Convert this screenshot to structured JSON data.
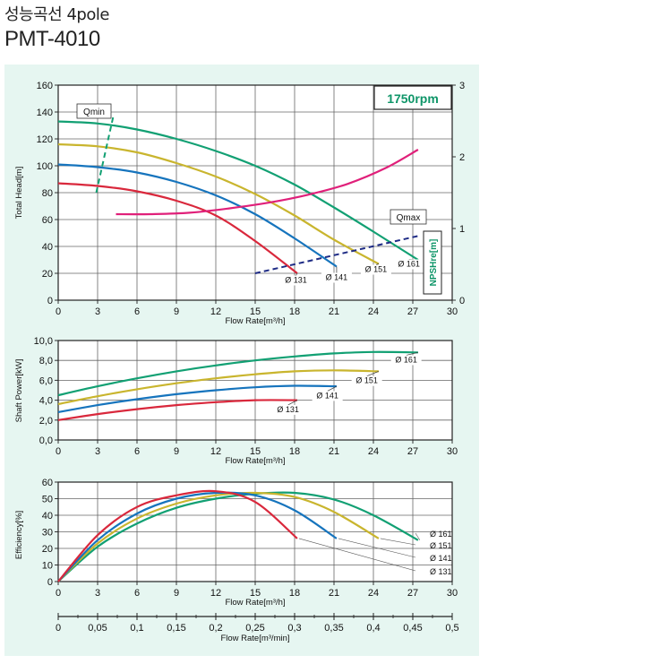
{
  "header": {
    "title_ko": "성능곡선 4pole",
    "model": "PMT-4010"
  },
  "colors": {
    "d161": "#12a073",
    "d151": "#c9b52e",
    "d141": "#1674bd",
    "d131": "#d9283c",
    "npsh": "#e0207a",
    "limits": "#1e2b85",
    "rpm_text": "#0e9568",
    "panel": "#e6f6f1"
  },
  "chart_data": [
    {
      "type": "line",
      "id": "head",
      "xlabel": "Flow Rate[m³/h]",
      "ylabel": "Total Head[m]",
      "y2label": "NPSHre[m]",
      "xlim": [
        0,
        30
      ],
      "ylim": [
        0,
        160
      ],
      "y2lim": [
        0,
        3
      ],
      "xticks": [
        "0",
        "3",
        "6",
        "9",
        "12",
        "15",
        "18",
        "21",
        "24",
        "27",
        "30"
      ],
      "yticks": [
        "0",
        "20",
        "40",
        "60",
        "80",
        "100",
        "120",
        "140",
        "160"
      ],
      "y2ticks": [
        "0",
        "1",
        "2",
        "3"
      ],
      "grid": true,
      "badge": "1750rpm",
      "series": [
        {
          "name": "Ø 161",
          "color_key": "d161",
          "x": [
            0,
            3,
            6,
            9,
            12,
            15,
            18,
            21,
            24,
            27.4
          ],
          "y": [
            133,
            131.5,
            127,
            120,
            111,
            100,
            86,
            69,
            51,
            30
          ]
        },
        {
          "name": "Ø 151",
          "color_key": "d151",
          "x": [
            0,
            3,
            6,
            9,
            12,
            15,
            18,
            21,
            24.4
          ],
          "y": [
            116,
            114.5,
            110,
            102,
            92,
            79,
            63,
            45,
            27
          ]
        },
        {
          "name": "Ø 141",
          "color_key": "d141",
          "x": [
            0,
            3,
            6,
            9,
            12,
            15,
            18,
            21.2
          ],
          "y": [
            101,
            99,
            95,
            88,
            78,
            64,
            46,
            25
          ]
        },
        {
          "name": "Ø 131",
          "color_key": "d131",
          "x": [
            0,
            3,
            6,
            9,
            12,
            15,
            18.2
          ],
          "y": [
            87,
            85,
            81,
            74,
            63,
            44,
            20
          ]
        }
      ],
      "npsh": {
        "name": "NPSHre[m]",
        "x": [
          4.4,
          7,
          10,
          13,
          16,
          19,
          22,
          25,
          27.4
        ],
        "y": [
          1.2,
          1.2,
          1.22,
          1.28,
          1.36,
          1.47,
          1.62,
          1.85,
          2.1
        ]
      },
      "qmin": {
        "label": "Qmin",
        "x": [
          2.9,
          4.2
        ],
        "y": [
          80,
          137
        ]
      },
      "qmax": {
        "label": "Qmax",
        "x": [
          15,
          27.5
        ],
        "y": [
          20,
          48
        ]
      },
      "curve_labels": [
        {
          "text": "Ø 131",
          "x": 18.1,
          "y": 13
        },
        {
          "text": "Ø 141",
          "x": 21.2,
          "y": 15
        },
        {
          "text": "Ø 151",
          "x": 24.2,
          "y": 21
        },
        {
          "text": "Ø 161",
          "x": 26.7,
          "y": 25
        }
      ]
    },
    {
      "type": "line",
      "id": "power",
      "xlabel": "Flow Rate[m³/h]",
      "ylabel": "Shaft Power[kW]",
      "xlim": [
        0,
        30
      ],
      "ylim": [
        0,
        10
      ],
      "xticks": [
        "0",
        "3",
        "6",
        "9",
        "12",
        "15",
        "18",
        "21",
        "24",
        "27",
        "30"
      ],
      "yticks": [
        "0,0",
        "2,0",
        "4,0",
        "6,0",
        "8,0",
        "10,0"
      ],
      "grid": true,
      "series": [
        {
          "name": "Ø 161",
          "color_key": "d161",
          "x": [
            0,
            3,
            6,
            9,
            12,
            15,
            18,
            21,
            24,
            27.4
          ],
          "y": [
            4.5,
            5.4,
            6.2,
            6.9,
            7.5,
            8.0,
            8.4,
            8.7,
            8.85,
            8.8
          ]
        },
        {
          "name": "Ø 151",
          "color_key": "d151",
          "x": [
            0,
            3,
            6,
            9,
            12,
            15,
            18,
            21,
            24.4
          ],
          "y": [
            3.6,
            4.4,
            5.1,
            5.7,
            6.2,
            6.6,
            6.9,
            7.0,
            6.9
          ]
        },
        {
          "name": "Ø 141",
          "color_key": "d141",
          "x": [
            0,
            3,
            6,
            9,
            12,
            15,
            18,
            21.2
          ],
          "y": [
            2.8,
            3.5,
            4.1,
            4.6,
            5.0,
            5.3,
            5.45,
            5.4
          ]
        },
        {
          "name": "Ø 131",
          "color_key": "d131",
          "x": [
            0,
            3,
            6,
            9,
            12,
            15,
            18.2
          ],
          "y": [
            2.0,
            2.6,
            3.1,
            3.5,
            3.8,
            4.0,
            4.0
          ]
        }
      ],
      "curve_labels": [
        {
          "text": "Ø 161",
          "x": 26.5,
          "y": 7.8
        },
        {
          "text": "Ø 151",
          "x": 23.5,
          "y": 5.7
        },
        {
          "text": "Ø 141",
          "x": 20.5,
          "y": 4.2
        },
        {
          "text": "Ø 131",
          "x": 17.5,
          "y": 2.8
        }
      ]
    },
    {
      "type": "line",
      "id": "efficiency",
      "xlabel": "Flow Rate[m³/h]",
      "ylabel": "Efficiency[%]",
      "x2label": "Flow Rate[m³/min]",
      "xlim": [
        0,
        30
      ],
      "ylim": [
        0,
        60
      ],
      "xticks": [
        "0",
        "3",
        "6",
        "9",
        "12",
        "15",
        "18",
        "21",
        "24",
        "27",
        "30"
      ],
      "yticks": [
        "0",
        "10",
        "20",
        "30",
        "40",
        "50",
        "60"
      ],
      "x2ticks": [
        "0",
        "0,05",
        "0,1",
        "0,15",
        "0,2",
        "0,25",
        "0,3",
        "0,35",
        "0,4",
        "0,45",
        "0,5"
      ],
      "grid": true,
      "series": [
        {
          "name": "Ø 161",
          "color_key": "d161",
          "x": [
            0,
            3,
            6,
            9,
            12,
            15,
            18,
            21,
            24,
            27.4
          ],
          "y": [
            0,
            21,
            35,
            44.5,
            50,
            53,
            53.5,
            49.5,
            40,
            25
          ]
        },
        {
          "name": "Ø 151",
          "color_key": "d151",
          "x": [
            0,
            3,
            6,
            9,
            12,
            15,
            18,
            21,
            24.4
          ],
          "y": [
            0,
            23,
            38,
            47,
            52,
            53.5,
            51,
            42,
            26
          ]
        },
        {
          "name": "Ø 141",
          "color_key": "d141",
          "x": [
            0,
            3,
            6,
            9,
            12,
            15,
            18,
            21.2
          ],
          "y": [
            0,
            25,
            41,
            50,
            53.5,
            52,
            43,
            26
          ]
        },
        {
          "name": "Ø 131",
          "color_key": "d131",
          "x": [
            0,
            3,
            6,
            9,
            12,
            15,
            18.2
          ],
          "y": [
            0,
            28,
            45,
            52,
            54.5,
            48,
            26
          ]
        }
      ],
      "legend": {
        "position": "right",
        "items": [
          "Ø 161",
          "Ø 151",
          "Ø 141",
          "Ø 131"
        ]
      }
    }
  ]
}
